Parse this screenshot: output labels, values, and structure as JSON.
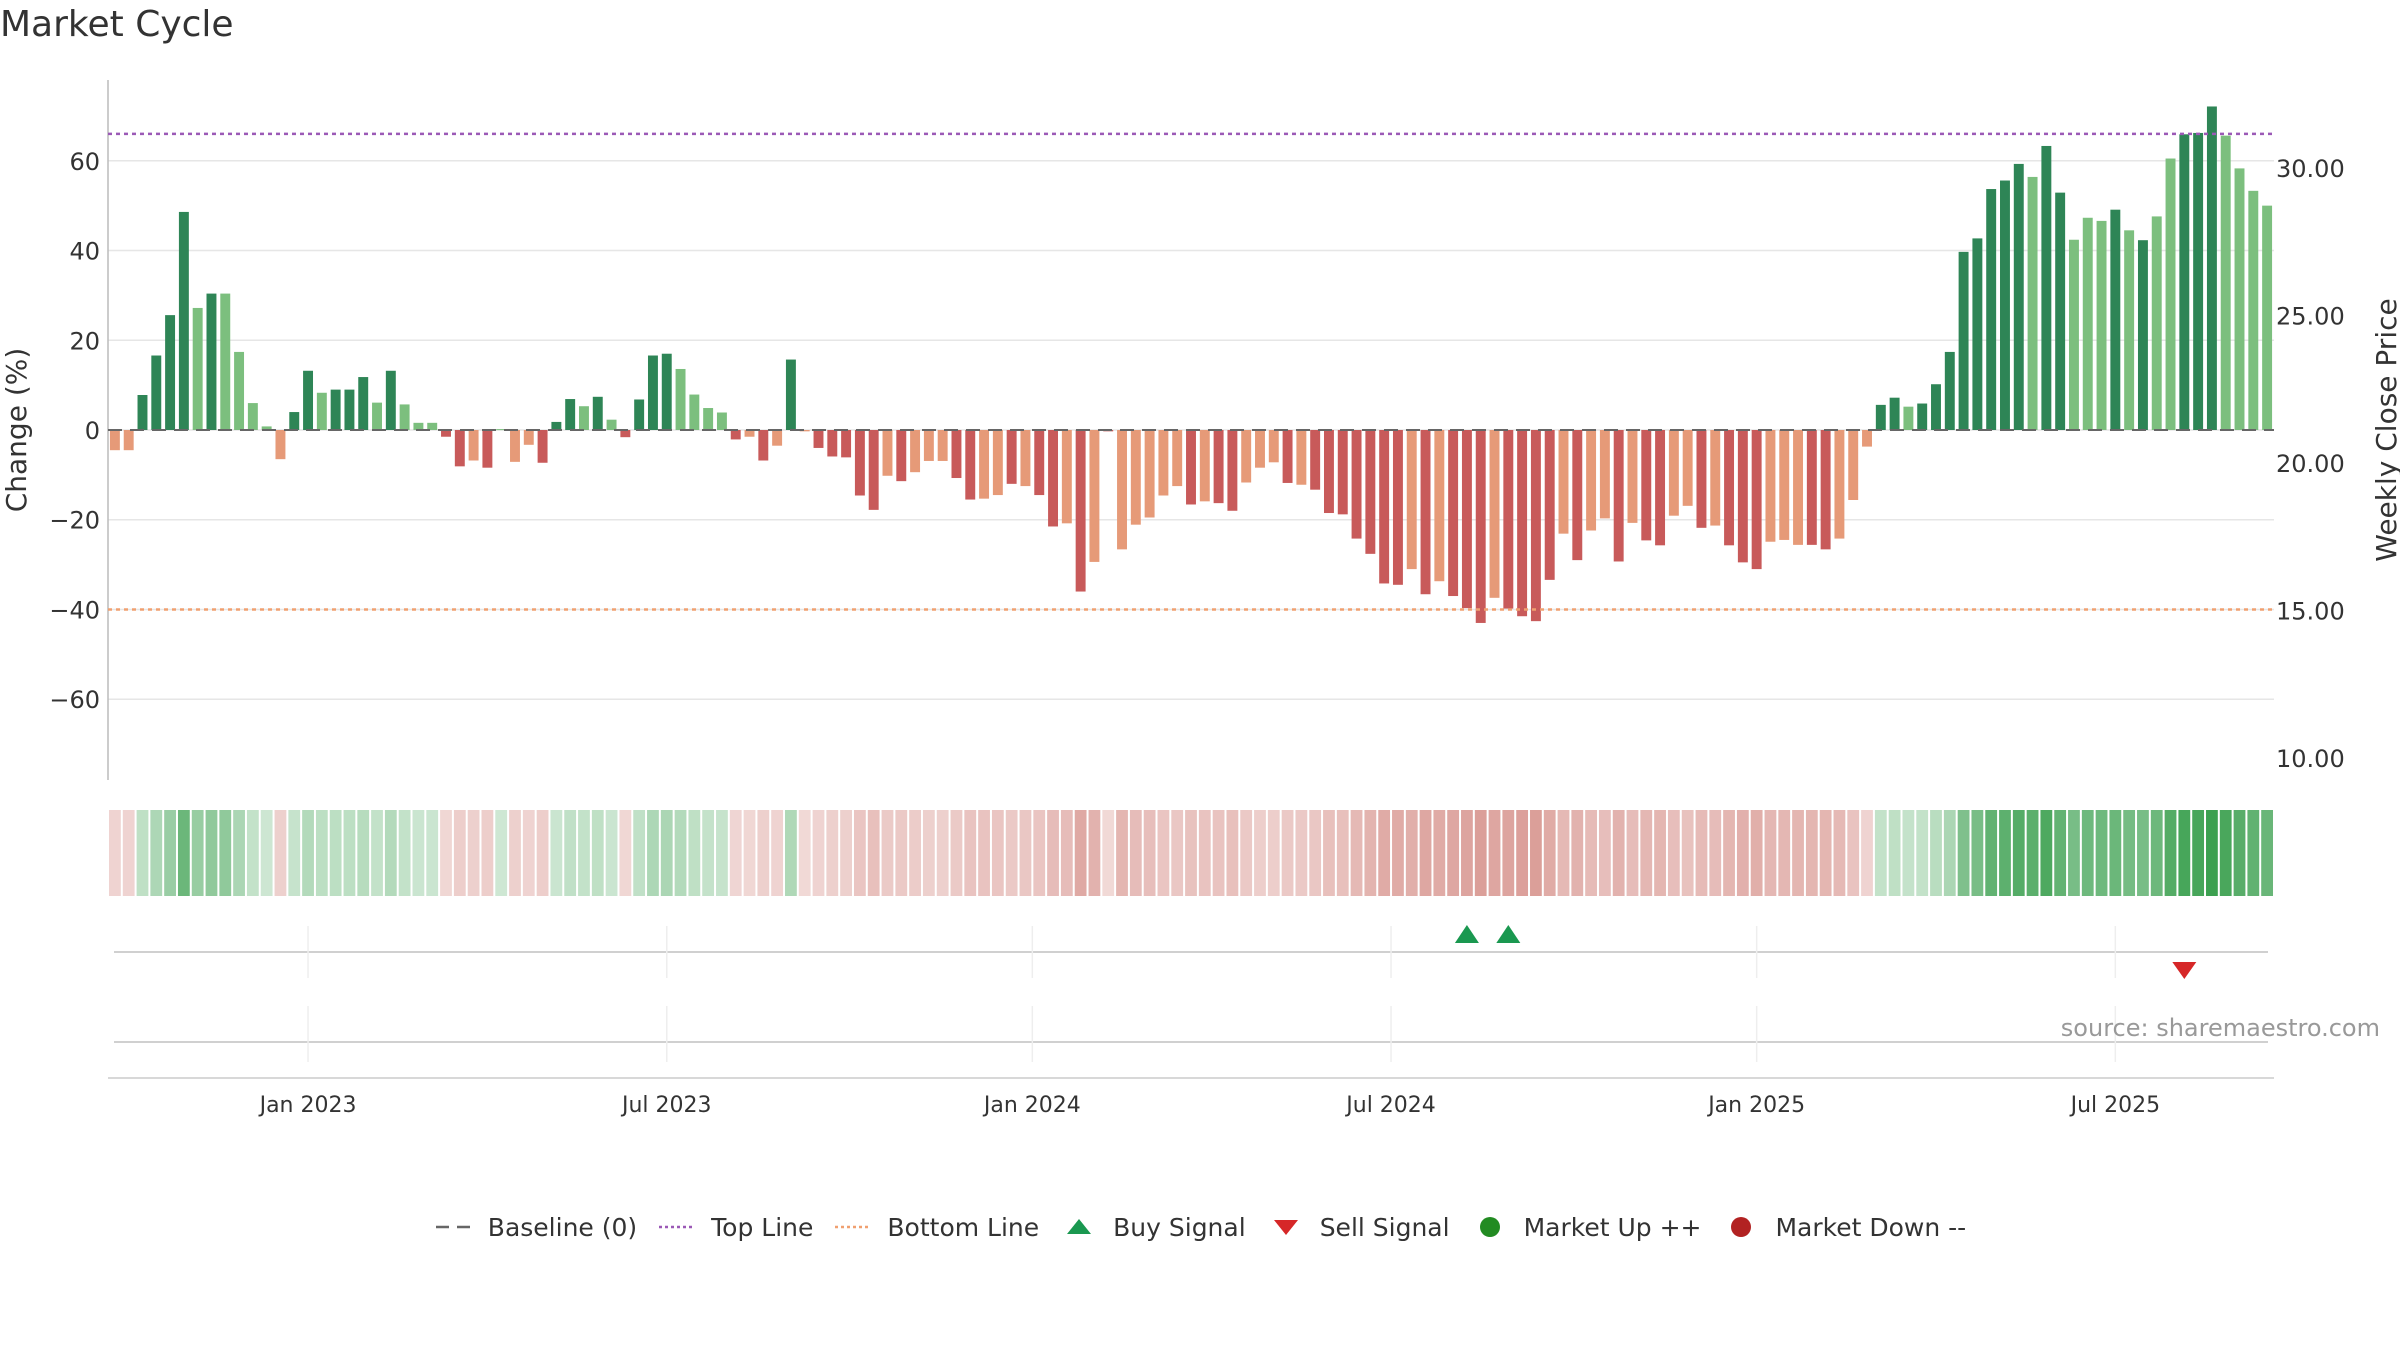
{
  "title": "Market Cycle",
  "source": "source: sharemaestro.com",
  "colors": {
    "up_strong": "#2e8556",
    "up_light": "#7cbf7e",
    "down_strong": "#c85a5a",
    "down_light": "#e69a78",
    "top_line": "#9b59b6",
    "bottom_line": "#f0a070",
    "buy": "#1a9850",
    "sell": "#d62728",
    "market_up": "#228b22",
    "market_down": "#b22222"
  },
  "legend": [
    {
      "label": "Baseline (0)",
      "symbol": "dash-gray"
    },
    {
      "label": "Top Line",
      "symbol": "dot-purple"
    },
    {
      "label": "Bottom Line",
      "symbol": "dot-orange"
    },
    {
      "label": "Buy Signal",
      "symbol": "triangle-up-green"
    },
    {
      "label": "Sell Signal",
      "symbol": "triangle-down-red"
    },
    {
      "label": "Market Up ++",
      "symbol": "circle-green"
    },
    {
      "label": "Market Down --",
      "symbol": "circle-red"
    }
  ],
  "chart_data": {
    "type": "bar",
    "title": "Market Cycle",
    "ylabel": "Change (%)",
    "y2label": "Weekly Close Price",
    "ylim": [
      -78,
      78
    ],
    "y_ticks": [
      60,
      40,
      20,
      0,
      -20,
      -40,
      -60
    ],
    "y_tick_labels": [
      "60",
      "40",
      "20",
      "0",
      "−20",
      "−40",
      "−60"
    ],
    "y2lim": [
      10,
      30
    ],
    "y2_ticks": [
      30,
      25,
      20,
      15,
      10
    ],
    "y2_tick_labels": [
      "30.00",
      "25.00",
      "20.00",
      "15.00",
      "10.00"
    ],
    "x_tick_labels": [
      "Jan 2023",
      "Jul 2023",
      "Jan 2024",
      "Jul 2024",
      "Jan 2025",
      "Jul 2025"
    ],
    "x_tick_index": [
      14,
      40,
      66.5,
      92.5,
      119,
      145
    ],
    "top_line": 66,
    "bottom_line": -40,
    "buy_signal_index": [
      98,
      101
    ],
    "sell_signal_index": [
      150
    ],
    "strength_start": [
      0,
      12,
      20,
      25,
      35,
      56,
      62,
      73,
      81,
      88,
      107,
      108,
      123,
      133,
      149
    ],
    "values": [
      -4.5,
      -4.5,
      7.8,
      16.6,
      25.6,
      48.6,
      27.2,
      30.4,
      30.4,
      17.4,
      6.0,
      0.8,
      -6.5,
      4.0,
      13.2,
      8.3,
      9.0,
      9.0,
      11.8,
      6.1,
      13.2,
      5.7,
      1.6,
      1.6,
      -1.5,
      -8.1,
      -6.8,
      -8.4,
      0.2,
      -7.1,
      -3.3,
      -7.3,
      1.8,
      6.9,
      5.3,
      7.4,
      2.3,
      -1.6,
      6.8,
      16.6,
      17.0,
      13.6,
      7.9,
      4.9,
      3.9,
      -2.1,
      -1.5,
      -6.8,
      -3.5,
      15.7,
      -0.3,
      -4.0,
      -5.9,
      -6.1,
      -14.6,
      -17.8,
      -10.2,
      -11.4,
      -9.4,
      -6.9,
      -6.9,
      -10.7,
      -15.5,
      -15.3,
      -14.5,
      -12.0,
      -12.5,
      -14.5,
      -21.5,
      -20.8,
      -36.0,
      -29.4,
      -0.3,
      -26.6,
      -21.1,
      -19.5,
      -14.6,
      -12.5,
      -16.6,
      -15.9,
      -16.3,
      -18.0,
      -11.7,
      -8.4,
      -7.2,
      -11.8,
      -12.2,
      -13.3,
      -18.5,
      -18.8,
      -24.2,
      -27.6,
      -34.2,
      -34.5,
      -31.0,
      -36.6,
      -33.7,
      -37.0,
      -39.7,
      -43.0,
      -37.4,
      -39.8,
      -41.5,
      -42.6,
      -33.4,
      -23.1,
      -29.0,
      -22.4,
      -19.7,
      -29.3,
      -20.7,
      -24.6,
      -25.7,
      -19.1,
      -16.9,
      -21.8,
      -21.3,
      -25.7,
      -29.5,
      -31.0,
      -24.9,
      -24.5,
      -25.6,
      -25.6,
      -26.6,
      -24.2,
      -15.6,
      -3.7,
      5.6,
      7.2,
      5.2,
      5.9,
      10.2,
      17.4,
      39.7,
      42.7,
      53.7,
      55.6,
      59.3,
      56.4,
      63.3,
      52.9,
      42.4,
      47.3,
      46.6,
      49.1,
      44.5,
      42.3,
      47.6,
      60.5,
      65.9,
      66.2,
      72.1,
      65.6,
      58.3,
      53.3,
      50.0
    ],
    "shades": [
      1,
      1,
      0,
      0,
      0,
      0,
      1,
      0,
      1,
      1,
      1,
      1,
      1,
      0,
      0,
      1,
      0,
      0,
      0,
      1,
      0,
      1,
      1,
      1,
      0,
      0,
      1,
      0,
      1,
      1,
      1,
      0,
      0,
      0,
      1,
      0,
      1,
      0,
      0,
      0,
      0,
      1,
      1,
      1,
      1,
      0,
      1,
      0,
      1,
      0,
      1,
      0,
      0,
      0,
      0,
      0,
      1,
      0,
      1,
      1,
      1,
      0,
      0,
      1,
      1,
      0,
      1,
      0,
      0,
      1,
      0,
      1,
      0,
      1,
      1,
      1,
      1,
      1,
      0,
      1,
      0,
      0,
      1,
      1,
      1,
      0,
      1,
      0,
      0,
      0,
      0,
      0,
      0,
      0,
      1,
      0,
      1,
      0,
      0,
      0,
      1,
      0,
      0,
      0,
      0,
      1,
      0,
      1,
      1,
      0,
      1,
      0,
      0,
      1,
      1,
      0,
      1,
      0,
      0,
      0,
      1,
      1,
      1,
      0,
      0,
      1,
      1,
      1,
      0,
      0,
      1,
      0,
      0,
      0,
      0,
      0,
      0,
      0,
      0,
      1,
      0,
      0,
      1,
      1,
      1,
      0,
      1,
      0,
      1,
      1,
      0,
      0,
      0,
      1,
      1,
      1,
      1,
      1
    ]
  }
}
